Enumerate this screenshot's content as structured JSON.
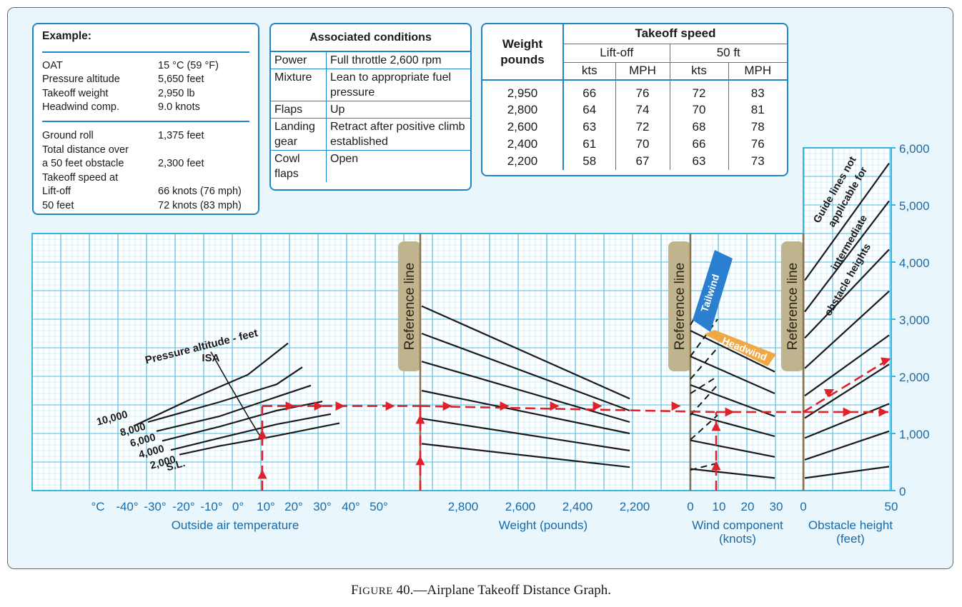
{
  "example": {
    "title": "Example:",
    "inputs": [
      {
        "label": "OAT",
        "value": "15 °C (59 °F)"
      },
      {
        "label": "Pressure altitude",
        "value": "5,650 feet"
      },
      {
        "label": "Takeoff weight",
        "value": "2,950 lb"
      },
      {
        "label": "Headwind comp.",
        "value": "9.0 knots"
      }
    ],
    "results": [
      {
        "label": "Ground roll",
        "value": "1,375 feet"
      },
      {
        "label": "Total distance over",
        "value": ""
      },
      {
        "label": "a 50 feet obstacle",
        "value": "2,300 feet"
      },
      {
        "label": "Takeoff speed at",
        "value": ""
      },
      {
        "label": "Lift-off",
        "value": "66 knots (76 mph)"
      },
      {
        "label": "50 feet",
        "value": "72 knots (83 mph)"
      }
    ]
  },
  "conditions": {
    "title": "Associated conditions",
    "rows": [
      {
        "k": "Power",
        "v": "Full throttle 2,600 rpm"
      },
      {
        "k": "Mixture",
        "v": "Lean to appropriate fuel pressure"
      },
      {
        "k": "Flaps",
        "v": "Up"
      },
      {
        "k": "Landing gear",
        "v": "Retract after positive climb established"
      },
      {
        "k": "Cowl flaps",
        "v": "Open"
      }
    ]
  },
  "speed_table": {
    "weight_header": "Weight pounds",
    "title": "Takeoff speed",
    "liftoff": "Lift-off",
    "fifty": "50 ft",
    "units": [
      "kts",
      "MPH",
      "kts",
      "MPH"
    ],
    "rows": [
      [
        "2,950",
        "66",
        "76",
        "72",
        "83"
      ],
      [
        "2,800",
        "64",
        "74",
        "70",
        "81"
      ],
      [
        "2,600",
        "63",
        "72",
        "68",
        "78"
      ],
      [
        "2,400",
        "61",
        "70",
        "66",
        "76"
      ],
      [
        "2,200",
        "58",
        "67",
        "63",
        "73"
      ]
    ]
  },
  "chart_data": {
    "type": "line",
    "colors": {
      "grid": "#3ab5e0",
      "curve": "#1a1a1a",
      "path": "#e0202a",
      "ref": "#8b7250",
      "tail": "#2a7fd0",
      "head": "#f0a844",
      "axis_text": "#1b6aa6"
    },
    "right_axis": {
      "label": "",
      "ticks": [
        "0",
        "1,000",
        "2,000",
        "3,000",
        "4,000",
        "5,000",
        "6,000"
      ],
      "range": [
        0,
        6000
      ]
    },
    "temperature": {
      "xlabel": "Outside air temperature",
      "ticks": [
        "°C",
        "-40°",
        "-30°",
        "-20°",
        "-10°",
        "0°",
        "10°",
        "20°",
        "30°",
        "40°",
        "50°"
      ],
      "range": [
        -45,
        55
      ],
      "title": "Pressure altitude - feet",
      "isa_label": "ISA",
      "altitude_labels": [
        "10,000",
        "8,000",
        "6,000",
        "4,000",
        "2,000",
        "S.L."
      ],
      "altitude_values": [
        10000,
        8000,
        6000,
        4000,
        2000,
        0
      ],
      "series": [
        {
          "name": "10,000",
          "points": [
            [
              -30,
              1130
            ],
            [
              -10,
              1600
            ],
            [
              10,
              2030
            ],
            [
              24,
              2580
            ]
          ]
        },
        {
          "name": "8,000",
          "points": [
            [
              -25,
              1200
            ],
            [
              0,
              1550
            ],
            [
              20,
              1860
            ],
            [
              29,
              2160
            ]
          ]
        },
        {
          "name": "6,000",
          "points": [
            [
              -22,
              1040
            ],
            [
              0,
              1300
            ],
            [
              20,
              1640
            ],
            [
              32,
              1840
            ]
          ]
        },
        {
          "name": "4,000",
          "points": [
            [
              -20,
              870
            ],
            [
              0,
              1120
            ],
            [
              20,
              1400
            ],
            [
              36,
              1560
            ]
          ]
        },
        {
          "name": "2,000",
          "points": [
            [
              -17,
              710
            ],
            [
              0,
              920
            ],
            [
              20,
              1160
            ],
            [
              39,
              1340
            ]
          ]
        },
        {
          "name": "S.L.",
          "points": [
            [
              -14,
              630
            ],
            [
              0,
              780
            ],
            [
              20,
              960
            ],
            [
              42,
              1180
            ]
          ]
        }
      ],
      "isa": [
        [
          -3,
          2430
        ],
        [
          3,
          1900
        ],
        [
          10,
          1300
        ],
        [
          15,
          890
        ]
      ]
    },
    "weight": {
      "xlabel": "Weight (pounds)",
      "ticks": [
        "2,800",
        "2,600",
        "2,400",
        "2,200"
      ],
      "tick_values": [
        2800,
        2600,
        2400,
        2200
      ],
      "range": [
        2950,
        2200
      ],
      "reference_label": "Reference line",
      "lines": [
        [
          3230,
          1610
        ],
        [
          2750,
          1400
        ],
        [
          2260,
          1200
        ],
        [
          1750,
          1000
        ],
        [
          1260,
          700
        ],
        [
          820,
          410
        ]
      ]
    },
    "wind": {
      "xlabel": "Wind component",
      "xlabel2": "(knots)",
      "ticks": [
        "0",
        "10",
        "20",
        "30"
      ],
      "range": [
        0,
        30
      ],
      "reference_label": "Reference line",
      "tailwind_label": "Tailwind",
      "headwind_label": "Headwind",
      "lines": [
        [
          2800,
          2080
        ],
        [
          2350,
          1700
        ],
        [
          1850,
          1300
        ],
        [
          1350,
          950
        ],
        [
          880,
          590
        ],
        [
          380,
          220
        ]
      ],
      "tail_lines": [
        [
          2900,
          3700
        ],
        [
          2350,
          3000
        ],
        [
          1950,
          2500
        ],
        [
          1700,
          2000
        ],
        [
          1320,
          1850
        ],
        [
          890,
          1320
        ],
        [
          360,
          480
        ]
      ]
    },
    "obstacle": {
      "xlabel": "Obstacle height",
      "xlabel2": "(feet)",
      "ticks": [
        "0",
        "50"
      ],
      "range": [
        0,
        50
      ],
      "reference_label": "Reference line",
      "note": "Guide lines not applicable for intermediate obstacle heights",
      "lines": [
        [
          3680,
          5730
        ],
        [
          3130,
          5070
        ],
        [
          2670,
          4220
        ],
        [
          2140,
          3490
        ],
        [
          1660,
          2720
        ],
        [
          1270,
          2210
        ],
        [
          920,
          1520
        ],
        [
          540,
          1040
        ],
        [
          220,
          420
        ]
      ]
    },
    "example_path": {
      "oat": 15,
      "pressure_altitude": 5650,
      "weight": 2950,
      "headwind": 9,
      "obstacle": 50,
      "ground_roll": 1375,
      "total_distance": 2300
    }
  },
  "caption": {
    "lead": "F",
    "small": "IGURE",
    "rest": " 40.—Airplane Takeoff Distance Graph."
  }
}
